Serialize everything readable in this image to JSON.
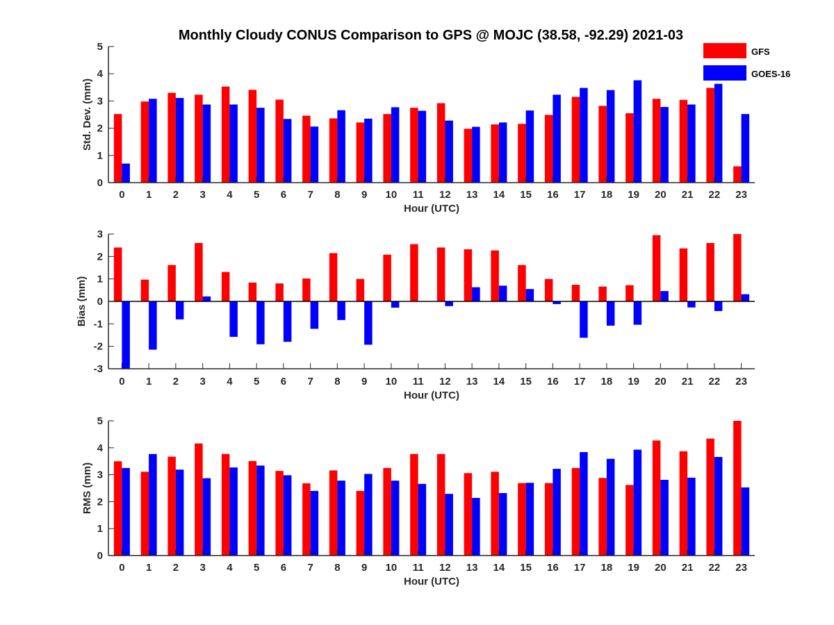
{
  "title": "Monthly Cloudy CONUS Comparison to GPS @ MOJC (38.58, -92.29) 2021-03",
  "legend": [
    {
      "name": "GFS",
      "color": "#ff0000"
    },
    {
      "name": "GOES-16",
      "color": "#0000ff"
    }
  ],
  "chart_data": [
    {
      "type": "bar",
      "ylabel": "Std. Dev. (mm)",
      "xlabel": "Hour (UTC)",
      "ylim": [
        0,
        5
      ],
      "yticks": [
        "0",
        "1",
        "2",
        "3",
        "4",
        "5"
      ],
      "categories": [
        "0",
        "1",
        "2",
        "3",
        "4",
        "5",
        "6",
        "7",
        "8",
        "9",
        "10",
        "11",
        "12",
        "13",
        "14",
        "15",
        "16",
        "17",
        "18",
        "19",
        "20",
        "21",
        "22",
        "23"
      ],
      "series": [
        {
          "name": "GFS",
          "values": [
            2.52,
            2.98,
            3.3,
            3.23,
            3.53,
            3.41,
            3.05,
            2.46,
            2.36,
            2.21,
            2.52,
            2.75,
            2.92,
            1.98,
            2.14,
            2.16,
            2.49,
            3.15,
            2.82,
            2.55,
            3.08,
            3.04,
            3.48,
            0.6
          ]
        },
        {
          "name": "GOES-16",
          "values": [
            0.7,
            3.08,
            3.11,
            2.87,
            2.87,
            2.75,
            2.34,
            2.06,
            2.66,
            2.35,
            2.77,
            2.64,
            2.28,
            2.05,
            2.21,
            2.65,
            3.23,
            3.48,
            3.4,
            3.76,
            2.78,
            2.87,
            3.63,
            2.52
          ]
        }
      ]
    },
    {
      "type": "bar",
      "ylabel": "Bias (mm)",
      "xlabel": "Hour (UTC)",
      "ylim": [
        -3,
        3
      ],
      "yticks": [
        "-3",
        "-2",
        "-1",
        "0",
        "1",
        "2",
        "3"
      ],
      "categories": [
        "0",
        "1",
        "2",
        "3",
        "4",
        "5",
        "6",
        "7",
        "8",
        "9",
        "10",
        "11",
        "12",
        "13",
        "14",
        "15",
        "16",
        "17",
        "18",
        "19",
        "20",
        "21",
        "22",
        "23"
      ],
      "series": [
        {
          "name": "GFS",
          "values": [
            2.4,
            0.97,
            1.62,
            2.6,
            1.31,
            0.84,
            0.8,
            1.02,
            2.15,
            1.0,
            2.08,
            2.55,
            2.4,
            2.32,
            2.27,
            1.62,
            1.0,
            0.74,
            0.66,
            0.72,
            2.95,
            2.36,
            2.6,
            3.0
          ]
        },
        {
          "name": "GOES-16",
          "values": [
            -3.0,
            -2.15,
            -0.8,
            0.22,
            -1.58,
            -1.91,
            -1.8,
            -1.22,
            -0.83,
            -1.93,
            -0.28,
            0.0,
            -0.21,
            0.63,
            0.7,
            0.55,
            -0.12,
            -1.62,
            -1.08,
            -1.04,
            0.46,
            -0.27,
            -0.43,
            0.32
          ]
        }
      ]
    },
    {
      "type": "bar",
      "ylabel": "RMS (mm)",
      "xlabel": "Hour (UTC)",
      "ylim": [
        0,
        5
      ],
      "yticks": [
        "0",
        "1",
        "2",
        "3",
        "4",
        "5"
      ],
      "categories": [
        "0",
        "1",
        "2",
        "3",
        "4",
        "5",
        "6",
        "7",
        "8",
        "9",
        "10",
        "11",
        "12",
        "13",
        "14",
        "15",
        "16",
        "17",
        "18",
        "19",
        "20",
        "21",
        "22",
        "23"
      ],
      "series": [
        {
          "name": "GFS",
          "values": [
            3.5,
            3.11,
            3.67,
            4.16,
            3.77,
            3.51,
            3.14,
            2.68,
            3.16,
            2.4,
            3.25,
            3.77,
            3.77,
            3.06,
            3.11,
            2.69,
            2.69,
            3.25,
            2.88,
            2.62,
            4.27,
            3.87,
            4.34,
            5.0
          ]
        },
        {
          "name": "GOES-16",
          "values": [
            3.25,
            3.77,
            3.19,
            2.87,
            3.27,
            3.34,
            2.98,
            2.4,
            2.78,
            3.03,
            2.78,
            2.66,
            2.29,
            2.14,
            2.32,
            2.7,
            3.22,
            3.84,
            3.59,
            3.93,
            2.81,
            2.89,
            3.66,
            2.53
          ]
        }
      ]
    }
  ]
}
